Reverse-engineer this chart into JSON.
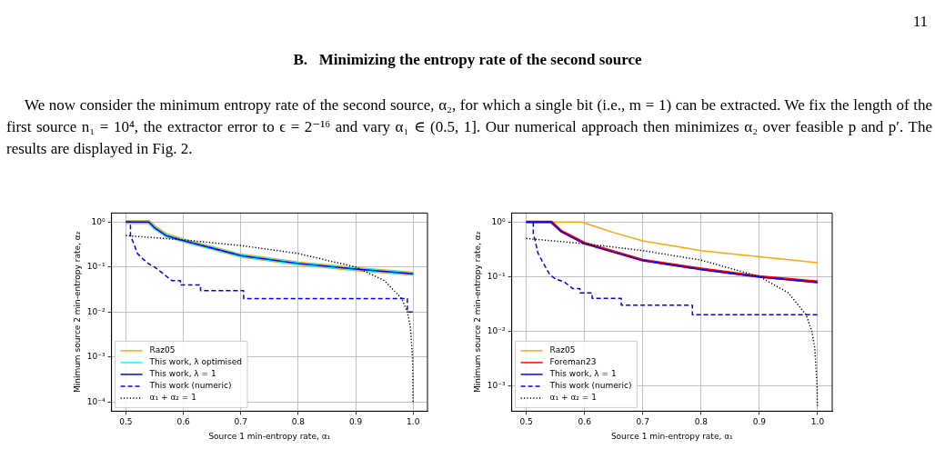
{
  "chart_data": [
    {
      "type": "line",
      "annotations": [
        "11",
        "B.   Minimizing the entropy rate of the second source",
        "We now consider the minimum entropy rate of the second source, α₂, for which a single bit (i.e., m = 1) can be extracted. We fix the length of the first source n₁ = 10⁴, the extractor error to ϵ = 2⁻¹⁶ and vary α₁ ∈ (0.5, 1]. Our numerical approach then minimizes α₂ over feasible p and p′. The results are displayed in Fig. 2."
      ],
      "xlabel": "Source 1 min-entropy rate, α₁",
      "ylabel": "Minimum source 2 min-entropy rate, α₂",
      "xlim": [
        0.475,
        1.025
      ],
      "xticks": [
        0.5,
        0.6,
        0.7,
        0.8,
        0.9,
        {
          "value": 1,
          "label": "1.0"
        }
      ],
      "ylim": [
        6.3e-05,
        1.58
      ],
      "yticks": [
        {
          "value": 0.0001,
          "label": "10⁻⁴"
        },
        {
          "value": 0.001,
          "label": "10⁻³"
        },
        {
          "value": 0.01,
          "label": "10⁻²"
        },
        {
          "value": 0.1,
          "label": "10⁻¹"
        },
        {
          "value": 1,
          "label": "10⁰"
        }
      ],
      "log": "y",
      "grid": true,
      "legend": "bottom left",
      "series": [
        {
          "name": "Raz05",
          "color": "#ffa500",
          "line_style": "solid",
          "x": [
            0.5,
            0.54,
            0.55,
            0.57,
            0.6,
            0.7,
            0.8,
            0.9,
            1.0
          ],
          "values": [
            1,
            1,
            0.76,
            0.51,
            0.39,
            0.18,
            0.12,
            0.09,
            0.071
          ]
        },
        {
          "name": "This work, λ optimised",
          "color": "#00ffff",
          "line_style": "solid",
          "x": [
            0.5,
            0.54,
            0.55,
            0.57,
            0.6,
            0.7,
            0.8,
            0.9,
            1.0
          ],
          "values": [
            1,
            1,
            0.74,
            0.5,
            0.386,
            0.18,
            0.12,
            0.09,
            0.071
          ]
        },
        {
          "name": "This work, λ = 1",
          "color": "#0000ff",
          "line_style": "solid",
          "x": [
            0.5,
            0.54,
            0.55,
            0.57,
            0.6,
            0.7,
            0.8,
            0.9,
            1.0
          ],
          "values": [
            1,
            1,
            0.74,
            0.5,
            0.386,
            0.18,
            0.12,
            0.09,
            0.071
          ]
        },
        {
          "name": "This work (numeric)",
          "color": "#0000ff",
          "line_style": "dashed",
          "x": [
            0.5,
            0.508,
            0.508,
            0.515,
            0.52,
            0.53,
            0.54,
            0.55,
            0.56,
            0.57,
            0.58,
            0.595,
            0.595,
            0.63,
            0.63,
            0.705,
            0.705,
            0.99,
            0.99,
            1.0
          ],
          "values": [
            1,
            1,
            0.5,
            0.3,
            0.2,
            0.15,
            0.117,
            0.1,
            0.08,
            0.063,
            0.05,
            0.05,
            0.04,
            0.04,
            0.03,
            0.03,
            0.02,
            0.02,
            0.01,
            0.01
          ]
        },
        {
          "name": "α₁ + α₂ = 1",
          "color": "#000000",
          "line_style": "dotted",
          "x": [
            0.5,
            0.6,
            0.7,
            0.8,
            0.9,
            0.95,
            0.98,
            0.99,
            0.995,
            0.999,
            0.9999
          ],
          "values": [
            0.5,
            0.4,
            0.3,
            0.2,
            0.1,
            0.05,
            0.02,
            0.01,
            0.005,
            0.001,
            0.0001
          ]
        }
      ]
    },
    {
      "type": "line",
      "xlabel": "Source 1 min-entropy rate, α₁",
      "ylabel": "Minimum source 2 min-entropy rate, α₂",
      "xlim": [
        0.475,
        1.025
      ],
      "xticks": [
        0.5,
        0.6,
        0.7,
        0.8,
        0.9,
        {
          "value": 1,
          "label": "1.0"
        }
      ],
      "ylim": [
        0.00034,
        1.46
      ],
      "yticks": [
        {
          "value": 0.001,
          "label": "10⁻³"
        },
        {
          "value": 0.01,
          "label": "10⁻²"
        },
        {
          "value": 0.1,
          "label": "10⁻¹"
        },
        {
          "value": 1,
          "label": "10⁰"
        }
      ],
      "log": "y",
      "grid": true,
      "legend": "bottom left",
      "series": [
        {
          "name": "Raz05",
          "color": "#ffa500",
          "line_style": "solid",
          "x": [
            0.5,
            0.595,
            0.65,
            0.7,
            0.8,
            0.9,
            1.0
          ],
          "values": [
            1,
            1,
            0.64,
            0.45,
            0.3,
            0.23,
            0.18
          ]
        },
        {
          "name": "Foreman23",
          "color": "#ff0000",
          "line_style": "solid",
          "x": [
            0.5,
            0.543,
            0.56,
            0.6,
            0.7,
            0.8,
            0.9,
            1.0
          ],
          "values": [
            1,
            1,
            0.68,
            0.41,
            0.2,
            0.138,
            0.1,
            0.08
          ]
        },
        {
          "name": "This work, λ = 1",
          "color": "#0000ff",
          "line_style": "solid",
          "x": [
            0.5,
            0.543,
            0.56,
            0.6,
            0.7,
            0.8,
            0.9,
            1.0
          ],
          "values": [
            1,
            1,
            0.67,
            0.4,
            0.197,
            0.135,
            0.098,
            0.078
          ]
        },
        {
          "name": "This work (numeric)",
          "color": "#0000ff",
          "line_style": "dashed",
          "x": [
            0.5,
            0.512,
            0.512,
            0.515,
            0.52,
            0.53,
            0.54,
            0.55,
            0.565,
            0.58,
            0.592,
            0.592,
            0.613,
            0.613,
            0.663,
            0.663,
            0.785,
            0.785,
            1.0
          ],
          "values": [
            1,
            1,
            0.6,
            0.47,
            0.27,
            0.17,
            0.11,
            0.09,
            0.08,
            0.06,
            0.06,
            0.05,
            0.05,
            0.04,
            0.04,
            0.03,
            0.03,
            0.02,
            0.02
          ]
        },
        {
          "name": "α₁ + α₂ = 1",
          "color": "#000000",
          "line_style": "dotted",
          "x": [
            0.5,
            0.6,
            0.7,
            0.8,
            0.9,
            0.95,
            0.98,
            0.99,
            0.995,
            0.999,
            0.9996
          ],
          "values": [
            0.5,
            0.4,
            0.3,
            0.2,
            0.1,
            0.05,
            0.02,
            0.01,
            0.005,
            0.001,
            0.0004
          ]
        }
      ]
    }
  ]
}
